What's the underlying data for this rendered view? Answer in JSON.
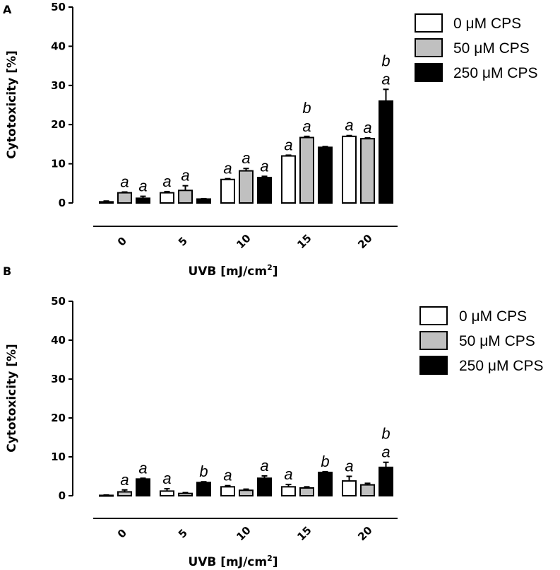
{
  "colors": {
    "0 μM CPS": "#ffffff",
    "50 μM CPS": "#c0c0c0",
    "250 μM CPS": "#000000"
  },
  "chart_data": [
    {
      "panel": "A",
      "type": "bar",
      "xlabel": "UVB [mJ/cm",
      "xlabel_sup": "2",
      "xlabel_end": "]",
      "ylabel": "Cytotoxicity [%]",
      "ylim": [
        0,
        50
      ],
      "yticks": [
        "0",
        "10",
        "20",
        "30",
        "40",
        "50"
      ],
      "categories": [
        "0",
        "5",
        "10",
        "15",
        "20"
      ],
      "series": [
        {
          "name": "0 μM CPS",
          "values": [
            0.3,
            2.6,
            6.0,
            12.0,
            17.0
          ],
          "errors": [
            0.2,
            0.3,
            0.2,
            0.2,
            0.2
          ],
          "labels": [
            [
              "",
              ""
            ],
            [
              "a",
              ""
            ],
            [
              "a",
              ""
            ],
            [
              "a",
              ""
            ],
            [
              "a",
              ""
            ]
          ]
        },
        {
          "name": "50 μM CPS",
          "values": [
            2.6,
            3.2,
            8.2,
            16.7,
            16.4
          ],
          "errors": [
            0.2,
            1.2,
            0.6,
            0.3,
            0.2
          ],
          "labels": [
            [
              "a",
              ""
            ],
            [
              "a",
              ""
            ],
            [
              "a",
              ""
            ],
            [
              "a",
              "b"
            ],
            [
              "a",
              ""
            ]
          ]
        },
        {
          "name": "250 μM CPS",
          "values": [
            1.2,
            1.0,
            6.5,
            14.2,
            26.0
          ],
          "errors": [
            0.5,
            0.1,
            0.3,
            0.2,
            3.0
          ],
          "labels": [
            [
              "a",
              ""
            ],
            [
              "",
              ""
            ],
            [
              "a",
              ""
            ],
            [
              "",
              ""
            ],
            [
              "a",
              "b"
            ]
          ]
        }
      ],
      "legend": [
        "0 μM CPS",
        "50 μM CPS",
        "250 μM CPS"
      ]
    },
    {
      "panel": "B",
      "type": "bar",
      "xlabel": "UVB [mJ/cm",
      "xlabel_sup": "2",
      "xlabel_end": "]",
      "ylabel": "Cytotoxicity [%]",
      "ylim": [
        0,
        50
      ],
      "yticks": [
        "0",
        "10",
        "20",
        "30",
        "40",
        "50"
      ],
      "categories": [
        "0",
        "5",
        "10",
        "15",
        "20"
      ],
      "series": [
        {
          "name": "0 μM CPS",
          "values": [
            0.1,
            1.2,
            2.3,
            2.3,
            3.8
          ],
          "errors": [
            0.1,
            0.6,
            0.3,
            0.6,
            1.2
          ],
          "labels": [
            [
              "",
              ""
            ],
            [
              "a",
              ""
            ],
            [
              "a",
              ""
            ],
            [
              "a",
              ""
            ],
            [
              "a",
              ""
            ]
          ]
        },
        {
          "name": "50 μM CPS",
          "values": [
            1.0,
            0.6,
            1.4,
            2.0,
            2.8
          ],
          "errors": [
            0.5,
            0.2,
            0.3,
            0.3,
            0.4
          ],
          "labels": [
            [
              "a",
              ""
            ],
            [
              "",
              ""
            ],
            [
              "",
              ""
            ],
            [
              "",
              ""
            ],
            [
              "",
              ""
            ]
          ]
        },
        {
          "name": "250 μM CPS",
          "values": [
            4.3,
            3.4,
            4.5,
            6.0,
            7.3
          ],
          "errors": [
            0.2,
            0.2,
            0.6,
            0.2,
            1.3
          ],
          "labels": [
            [
              "a",
              ""
            ],
            [
              "b",
              ""
            ],
            [
              "a",
              ""
            ],
            [
              "b",
              ""
            ],
            [
              "a",
              "b"
            ]
          ]
        }
      ],
      "legend": [
        "0 μM CPS",
        "50 μM CPS",
        "250 μM CPS"
      ]
    }
  ]
}
